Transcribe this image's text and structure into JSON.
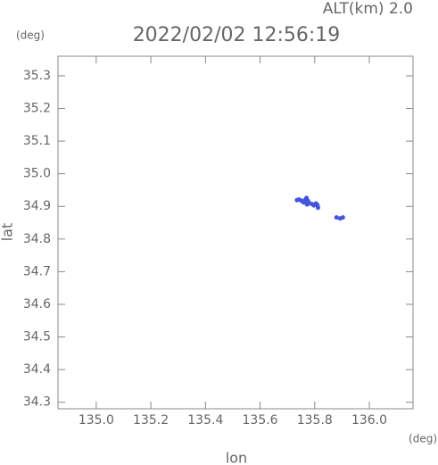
{
  "chart_data": {
    "type": "scatter",
    "title": "2022/02/02 12:56:19",
    "subtitle": "ALT(km) 2.0",
    "x_label": "lon",
    "y_label": "lat",
    "x_unit": "(deg)",
    "y_unit": "(deg)",
    "color": "#4455dd",
    "xlim": [
      134.86,
      136.16
    ],
    "ylim": [
      34.28,
      35.36
    ],
    "xticks": [
      {
        "value": 135.0,
        "label": "135.0"
      },
      135.2,
      135.4,
      135.6,
      135.8,
      {
        "value": 136.0,
        "label": "136.0"
      }
    ],
    "yticks": [
      34.3,
      34.4,
      34.5,
      34.6,
      34.7,
      34.8,
      34.9,
      {
        "value": 35.0,
        "label": "35.0"
      },
      35.1,
      35.2,
      35.3
    ],
    "x": [
      135.735,
      135.742,
      135.75,
      135.755,
      135.762,
      135.766,
      135.77,
      135.775,
      135.78,
      135.772,
      135.76,
      135.79,
      135.797,
      135.805,
      135.81,
      135.812,
      135.88,
      135.893,
      135.903
    ],
    "y": [
      34.919,
      34.921,
      34.918,
      34.915,
      34.913,
      34.921,
      34.926,
      34.917,
      34.91,
      34.906,
      34.912,
      34.907,
      34.903,
      34.909,
      34.904,
      34.896,
      34.866,
      34.863,
      34.866
    ]
  }
}
